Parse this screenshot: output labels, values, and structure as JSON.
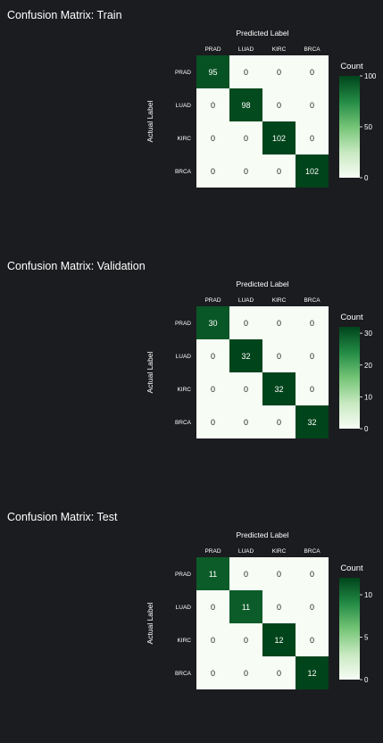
{
  "chart_data": [
    {
      "type": "heatmap",
      "title": "Confusion Matrix: Train",
      "xlabel": "Predicted Label",
      "ylabel": "Actual Label",
      "x_categories": [
        "PRAD",
        "LUAD",
        "KIRC",
        "BRCA"
      ],
      "y_categories": [
        "PRAD",
        "LUAD",
        "KIRC",
        "BRCA"
      ],
      "values": [
        [
          95,
          0,
          0,
          0
        ],
        [
          0,
          98,
          0,
          0
        ],
        [
          0,
          0,
          102,
          0
        ],
        [
          0,
          0,
          0,
          102
        ]
      ],
      "colorbar": {
        "label": "Count",
        "range": [
          0,
          100
        ],
        "ticks": [
          0,
          50,
          100
        ]
      },
      "colormap": [
        "#f7fcf5",
        "#00441b"
      ]
    },
    {
      "type": "heatmap",
      "title": "Confusion Matrix: Validation",
      "xlabel": "Predicted Label",
      "ylabel": "Actual Label",
      "x_categories": [
        "PRAD",
        "LUAD",
        "KIRC",
        "BRCA"
      ],
      "y_categories": [
        "PRAD",
        "LUAD",
        "KIRC",
        "BRCA"
      ],
      "values": [
        [
          30,
          0,
          0,
          0
        ],
        [
          0,
          32,
          0,
          0
        ],
        [
          0,
          0,
          32,
          0
        ],
        [
          0,
          0,
          0,
          32
        ]
      ],
      "colorbar": {
        "label": "Count",
        "range": [
          0,
          32
        ],
        "ticks": [
          0,
          10,
          20,
          30
        ]
      },
      "colormap": [
        "#f7fcf5",
        "#00441b"
      ]
    },
    {
      "type": "heatmap",
      "title": "Confusion Matrix: Test",
      "xlabel": "Predicted Label",
      "ylabel": "Actual Label",
      "x_categories": [
        "PRAD",
        "LUAD",
        "KIRC",
        "BRCA"
      ],
      "y_categories": [
        "PRAD",
        "LUAD",
        "KIRC",
        "BRCA"
      ],
      "values": [
        [
          11,
          0,
          0,
          0
        ],
        [
          0,
          11,
          0,
          0
        ],
        [
          0,
          0,
          12,
          0
        ],
        [
          0,
          0,
          0,
          12
        ]
      ],
      "colorbar": {
        "label": "Count",
        "range": [
          0,
          12
        ],
        "ticks": [
          0,
          5,
          10
        ]
      },
      "colormap": [
        "#f7fcf5",
        "#00441b"
      ]
    }
  ]
}
